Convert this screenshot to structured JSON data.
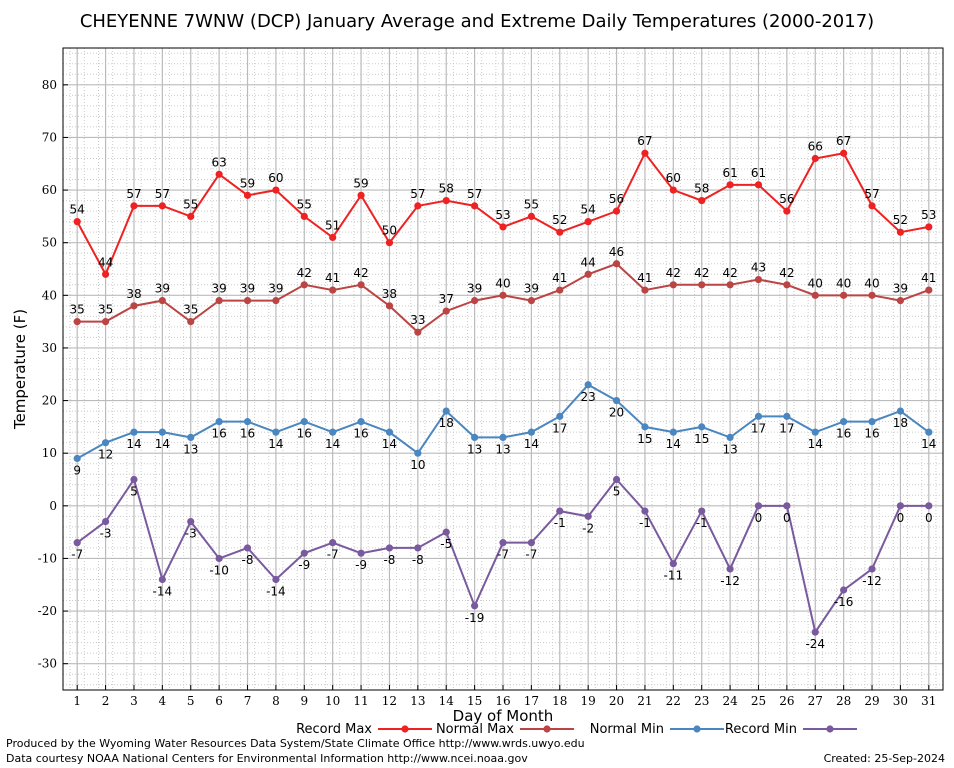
{
  "colors": {
    "record_max": "#ee2222",
    "normal_max": "#bb4444",
    "normal_min": "#4a86c0",
    "record_min": "#7a5a9e",
    "grid_major": "#bbbbbb",
    "grid_minor": "#cccccc"
  },
  "footer": {
    "produced_by": "Produced by the Wyoming Water Resources Data System/State Climate Office http://www.wrds.uwyo.edu",
    "data_courtesy": "Data courtesy NOAA National Centers for Environmental Information http://www.ncei.noaa.gov",
    "created": "Created:  25-Sep-2024"
  },
  "chart_data": {
    "type": "line",
    "title": "CHEYENNE 7WNW (DCP) January Average and Extreme Daily Temperatures (2000-2017)",
    "xlabel": "Day of Month",
    "ylabel": "Temperature (F)",
    "xlim": [
      0.5,
      31.5
    ],
    "ylim": [
      -35,
      87
    ],
    "yticks": [
      -30,
      -20,
      -10,
      0,
      10,
      20,
      30,
      40,
      50,
      60,
      70,
      80
    ],
    "x": [
      1,
      2,
      3,
      4,
      5,
      6,
      7,
      8,
      9,
      10,
      11,
      12,
      13,
      14,
      15,
      16,
      17,
      18,
      19,
      20,
      21,
      22,
      23,
      24,
      25,
      26,
      27,
      28,
      29,
      30,
      31
    ],
    "grid": true,
    "legend_position": "bottom",
    "series": [
      {
        "name": "Record Max",
        "color_key": "record_max",
        "label_pos": "above",
        "values": [
          54,
          44,
          57,
          57,
          55,
          63,
          59,
          60,
          55,
          51,
          59,
          50,
          57,
          58,
          57,
          53,
          55,
          52,
          54,
          56,
          67,
          60,
          58,
          61,
          61,
          56,
          66,
          67,
          57,
          52,
          53
        ]
      },
      {
        "name": "Normal Max",
        "color_key": "normal_max",
        "label_pos": "above",
        "values": [
          35,
          35,
          38,
          39,
          35,
          39,
          39,
          39,
          42,
          41,
          42,
          38,
          33,
          37,
          39,
          40,
          39,
          41,
          44,
          46,
          41,
          42,
          42,
          42,
          43,
          42,
          40,
          40,
          40,
          39,
          41
        ]
      },
      {
        "name": "Normal Min",
        "color_key": "normal_min",
        "label_pos": "below",
        "values": [
          9,
          12,
          14,
          14,
          13,
          16,
          16,
          14,
          16,
          14,
          16,
          14,
          10,
          18,
          13,
          13,
          14,
          17,
          23,
          20,
          15,
          14,
          15,
          13,
          17,
          17,
          14,
          16,
          16,
          18,
          14
        ]
      },
      {
        "name": "Record Min",
        "color_key": "record_min",
        "label_pos": "below",
        "values": [
          -7,
          -3,
          5,
          -14,
          -3,
          -10,
          -8,
          -14,
          -9,
          -7,
          -9,
          -8,
          -8,
          -5,
          -19,
          -7,
          -7,
          -1,
          -2,
          5,
          -1,
          -11,
          -1,
          -12,
          0,
          0,
          -24,
          -16,
          -12,
          0,
          0
        ]
      }
    ]
  }
}
